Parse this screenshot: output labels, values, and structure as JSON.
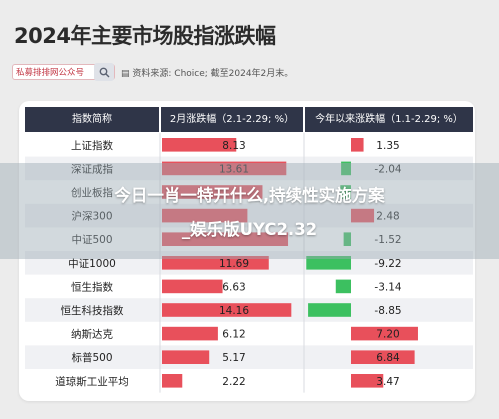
{
  "header": {
    "title": "2024年主要市场股指涨跌幅",
    "badge": "私募排排网公众号",
    "source": "资料来源: Choice; 截至2024年2月末。"
  },
  "table": {
    "headers": [
      "指数简称",
      "2月涨跌幅（2.1-2.29; %）",
      "今年以来涨跌幅（1.1-2.29; %）"
    ],
    "colors": {
      "header_bg": "#2f3548",
      "positive": "#e8505b",
      "negative": "#3cc060",
      "row_alt": "#f0f1f4"
    }
  },
  "overlay": {
    "line1": "今日一肖一特开什么,持续性实施方案",
    "line2": "_娱乐版UYC2.32"
  },
  "chart_data": {
    "type": "table",
    "title": "2024年主要市场股指涨跌幅",
    "categories": [
      "上证指数",
      "深证成指",
      "创业板指",
      "沪深300",
      "中证500",
      "中证1000",
      "恒生指数",
      "恒生科技指数",
      "纳斯达克",
      "标普500",
      "道琼斯工业平均"
    ],
    "series": [
      {
        "name": "2月涨跌幅（2.1-2.29; %）",
        "values": [
          8.13,
          13.61,
          11.0,
          9.35,
          13.8,
          11.69,
          6.63,
          14.16,
          6.12,
          5.17,
          2.22
        ],
        "labels": [
          "8.13",
          "13.61",
          "",
          "",
          "",
          "11.69",
          "6.63",
          "14.16",
          "6.12",
          "5.17",
          "2.22"
        ]
      },
      {
        "name": "今年以来涨跌幅（1.1-2.29; %）",
        "values": [
          1.35,
          -2.04,
          -2.2,
          2.48,
          -1.52,
          -9.22,
          -3.14,
          -8.85,
          7.2,
          6.84,
          3.47
        ],
        "labels": [
          "1.35",
          "-2.04",
          "",
          "2.48",
          "-1.52",
          "-9.22",
          "-3.14",
          "-8.85",
          "7.20",
          "6.84",
          "3.47"
        ]
      }
    ]
  }
}
